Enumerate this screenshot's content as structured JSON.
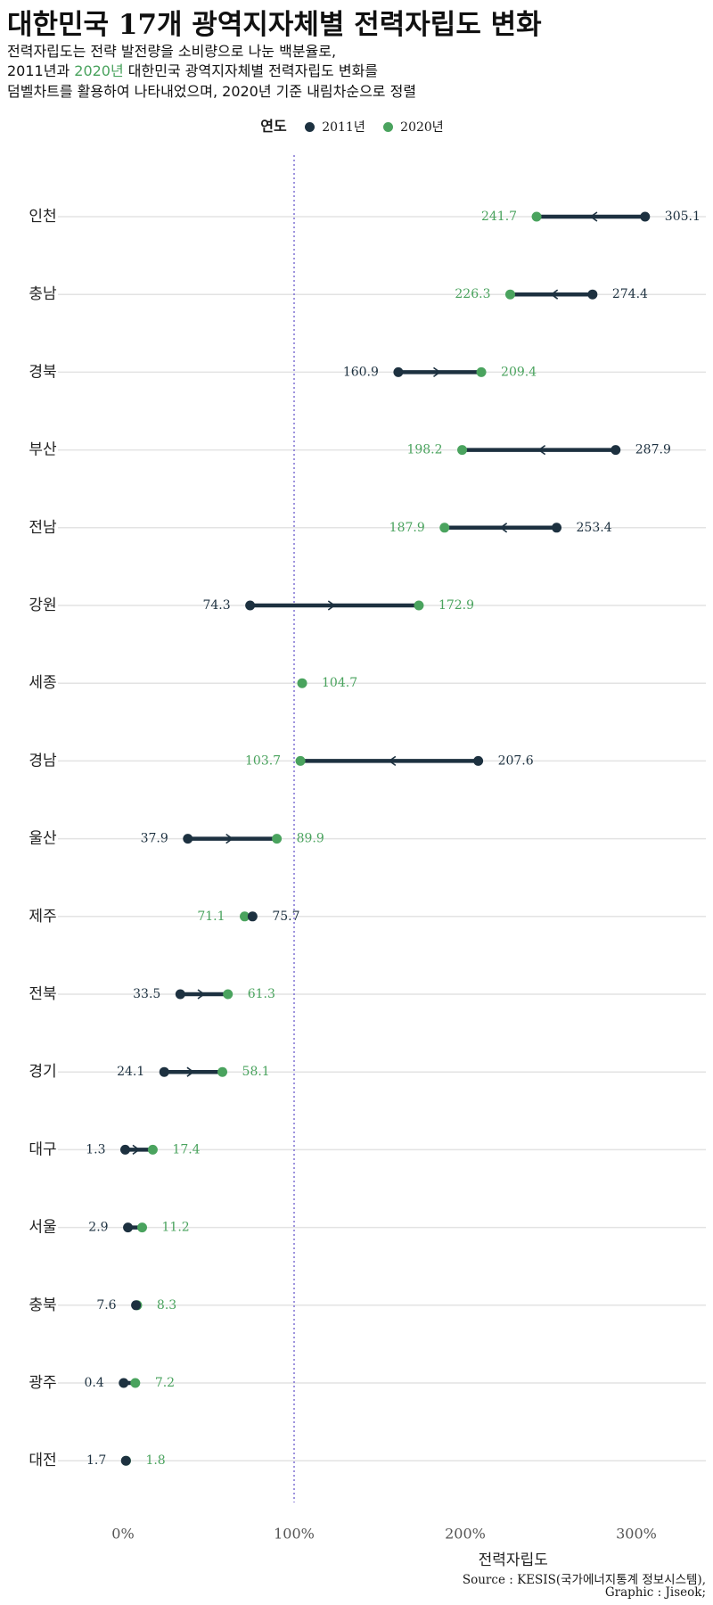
{
  "title": "대한민국 17개 광역지자체별 전력자립도 변화",
  "subtitle": {
    "line1": "전력자립도는 전략 발전량을 소비량으로 나눈 백분율로,",
    "line2_a": "2011년",
    "line2_b": "과 ",
    "line2_c": "2020년",
    "line2_d": " 대한민국 광역지자체별 전력자립도 변화를",
    "line3": "덤벨차트를 활용하여 나타내었으며, 2020년 기준 내림차순으로 정렬"
  },
  "legend": {
    "title": "연도",
    "items": [
      {
        "label": "2011년",
        "color": "#1d3140"
      },
      {
        "label": "2020년",
        "color": "#4aa35e"
      }
    ]
  },
  "colors": {
    "y2011": "#1d3140",
    "y2020": "#4aa35e",
    "reference_line": "#6a5acd",
    "grid": "#e3e3e3"
  },
  "chart_data": {
    "type": "dumbbell",
    "xlabel": "전력자립도",
    "xlim": [
      -10,
      340
    ],
    "xticks": [
      0,
      100,
      200,
      300
    ],
    "xtick_labels": [
      "0%",
      "100%",
      "200%",
      "300%"
    ],
    "reference_line": 100,
    "categories": [
      "인천",
      "충남",
      "경북",
      "부산",
      "전남",
      "강원",
      "세종",
      "경남",
      "울산",
      "제주",
      "전북",
      "경기",
      "대구",
      "서울",
      "충북",
      "광주",
      "대전"
    ],
    "series": [
      {
        "name": "2011년",
        "values": [
          305.1,
          274.4,
          160.9,
          287.9,
          253.4,
          74.3,
          null,
          207.6,
          37.9,
          75.7,
          33.5,
          24.1,
          1.3,
          2.9,
          7.6,
          0.4,
          1.7
        ]
      },
      {
        "name": "2020년",
        "values": [
          241.7,
          226.3,
          209.4,
          198.2,
          187.9,
          172.9,
          104.7,
          103.7,
          89.9,
          71.1,
          61.3,
          58.1,
          17.4,
          11.2,
          8.3,
          7.2,
          1.8
        ]
      }
    ],
    "labels_2011": [
      "305.1",
      "274.4",
      "160.9",
      "287.9",
      "253.4",
      "74.3",
      "",
      "207.6",
      "37.9",
      "75.7",
      "33.5",
      "24.1",
      "1.3",
      "2.9",
      "7.6",
      "0.4",
      "1.7"
    ],
    "labels_2020": [
      "241.7",
      "226.3",
      "209.4",
      "198.2",
      "187.9",
      "172.9",
      "104.7",
      "103.7",
      "89.9",
      "71.1",
      "61.3",
      "58.1",
      "17.4",
      "11.2",
      "8.3",
      "7.2",
      "1.8"
    ]
  },
  "source": {
    "line1": "Source : KESIS(국가에너지통계 정보시스템),",
    "line2": "Graphic : Jiseok;"
  }
}
